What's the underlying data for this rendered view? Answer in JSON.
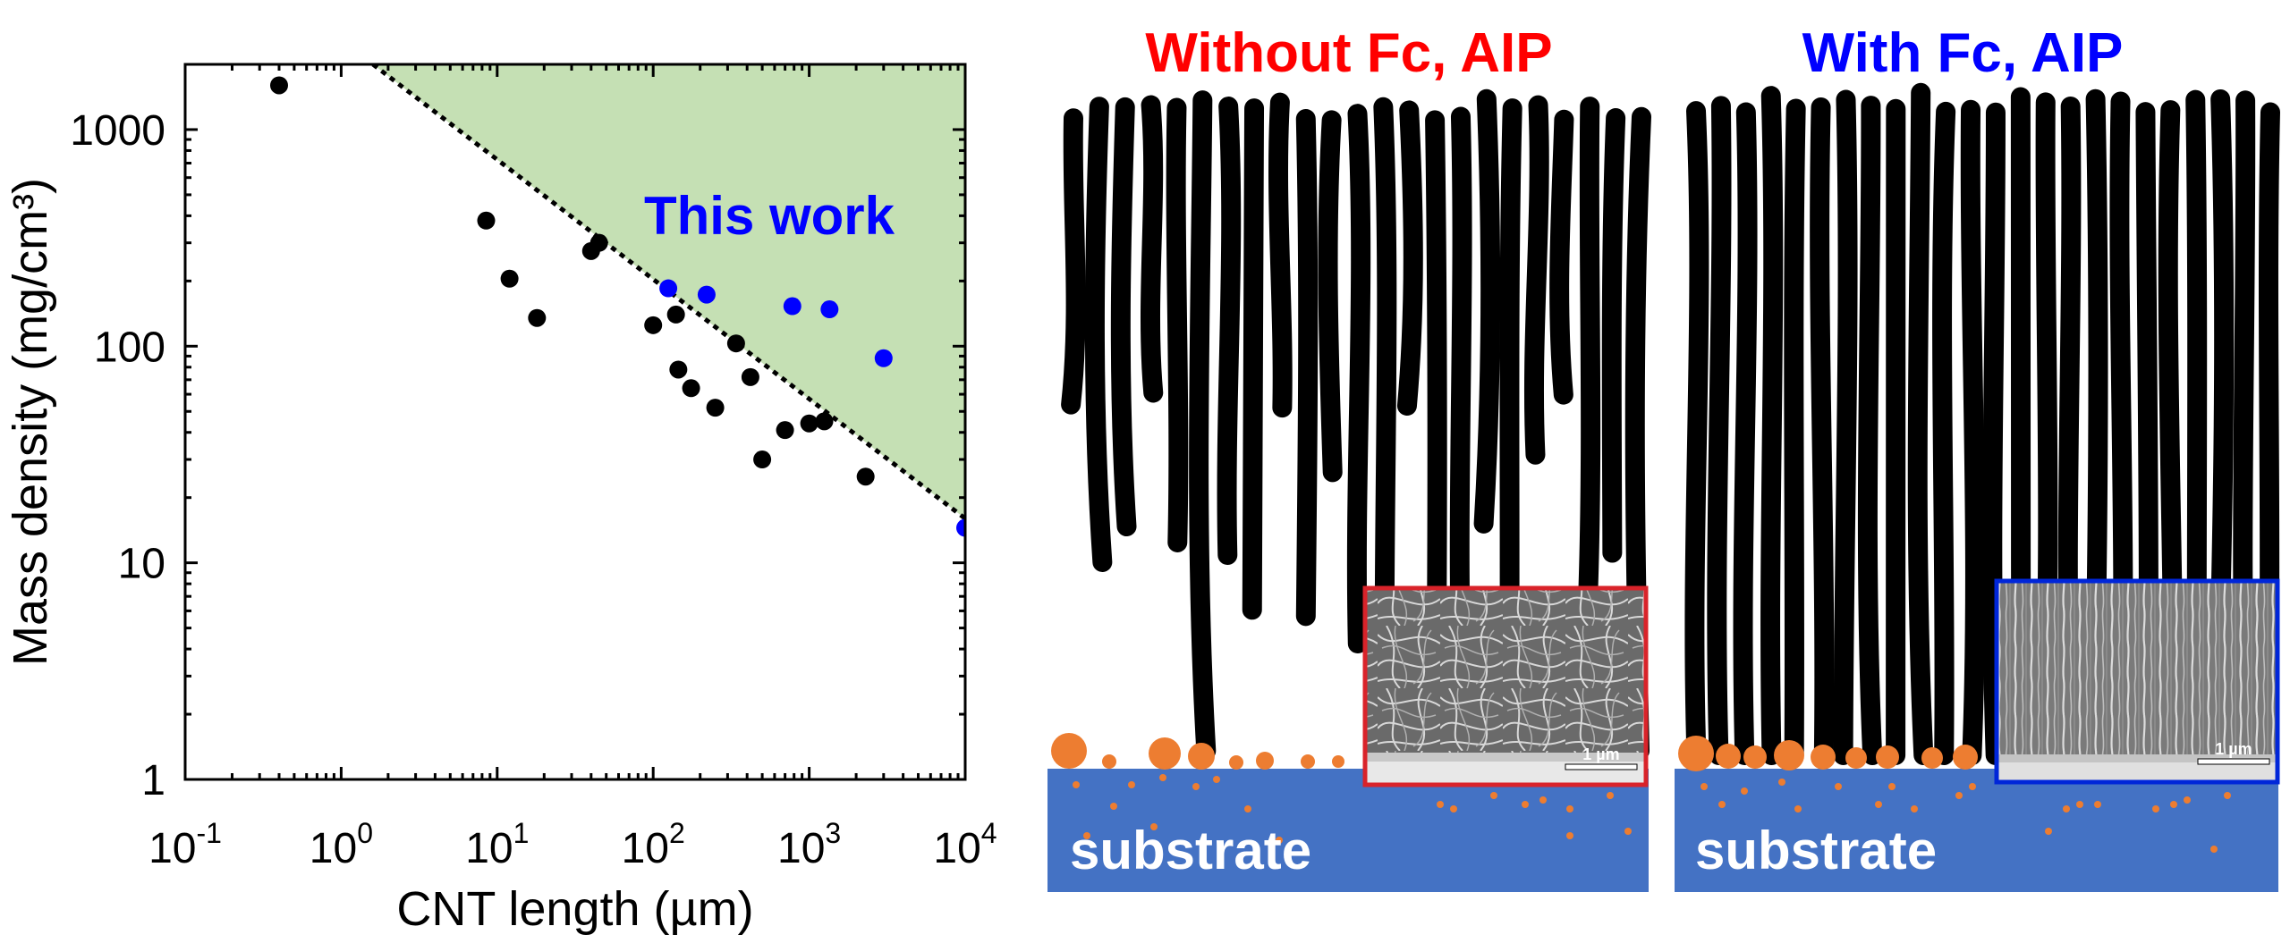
{
  "chart_data": {
    "type": "scatter",
    "xlabel": "CNT length (µm)",
    "ylabel": "Mass density (mg/cm³)",
    "x_scale": "log",
    "y_scale": "log",
    "xlim": [
      0.1,
      10000
    ],
    "ylim": [
      1,
      2000
    ],
    "x_ticks": [
      {
        "value": 0.1,
        "base": "10",
        "exp": "-1"
      },
      {
        "value": 1,
        "base": "10",
        "exp": "0"
      },
      {
        "value": 10,
        "base": "10",
        "exp": "1"
      },
      {
        "value": 100,
        "base": "10",
        "exp": "2"
      },
      {
        "value": 1000,
        "base": "10",
        "exp": "3"
      },
      {
        "value": 10000,
        "base": "10",
        "exp": "4"
      }
    ],
    "y_ticks": [
      {
        "value": 1,
        "label": "1"
      },
      {
        "value": 10,
        "label": "10"
      },
      {
        "value": 100,
        "label": "100"
      },
      {
        "value": 1000,
        "label": "1000"
      }
    ],
    "grid": false,
    "boundary_line": {
      "x": [
        1.6,
        10000
      ],
      "y": [
        2000,
        16
      ],
      "style": "dotted"
    },
    "shaded_region": {
      "color": "#c5e0b4",
      "description": "above boundary line"
    },
    "annotation": {
      "text": "This work",
      "color": "#0000ff",
      "x": 600,
      "y": 300
    },
    "series": [
      {
        "color": "#000000",
        "points": [
          {
            "x": 0.4,
            "y": 1600
          },
          {
            "x": 8.5,
            "y": 380
          },
          {
            "x": 12,
            "y": 205
          },
          {
            "x": 18,
            "y": 135
          },
          {
            "x": 40,
            "y": 275
          },
          {
            "x": 45,
            "y": 300
          },
          {
            "x": 100,
            "y": 125
          },
          {
            "x": 140,
            "y": 140
          },
          {
            "x": 145,
            "y": 78
          },
          {
            "x": 175,
            "y": 64
          },
          {
            "x": 250,
            "y": 52
          },
          {
            "x": 340,
            "y": 103
          },
          {
            "x": 420,
            "y": 72
          },
          {
            "x": 500,
            "y": 30
          },
          {
            "x": 700,
            "y": 41
          },
          {
            "x": 1000,
            "y": 44
          },
          {
            "x": 1250,
            "y": 45
          },
          {
            "x": 2300,
            "y": 25
          }
        ]
      },
      {
        "color": "#0000ff",
        "points": [
          {
            "x": 125,
            "y": 185
          },
          {
            "x": 220,
            "y": 173
          },
          {
            "x": 780,
            "y": 153
          },
          {
            "x": 1350,
            "y": 148
          },
          {
            "x": 3000,
            "y": 88
          },
          {
            "x": 10000,
            "y": 14.5
          }
        ]
      }
    ]
  },
  "panels": {
    "left": {
      "title": "Without Fc, AIP",
      "title_color": "#ff0000",
      "substrate_label": "substrate",
      "inset_scale_label": "1 µm",
      "inset_border_color": "#d9232a"
    },
    "right": {
      "title": "With Fc, AIP",
      "title_color": "#0000ff",
      "substrate_label": "substrate",
      "inset_scale_label": "1 µm",
      "inset_border_color": "#0026d9"
    },
    "colors": {
      "substrate": "#4472c4",
      "catalyst": "#ed7d31",
      "cnt": "#000000"
    }
  }
}
